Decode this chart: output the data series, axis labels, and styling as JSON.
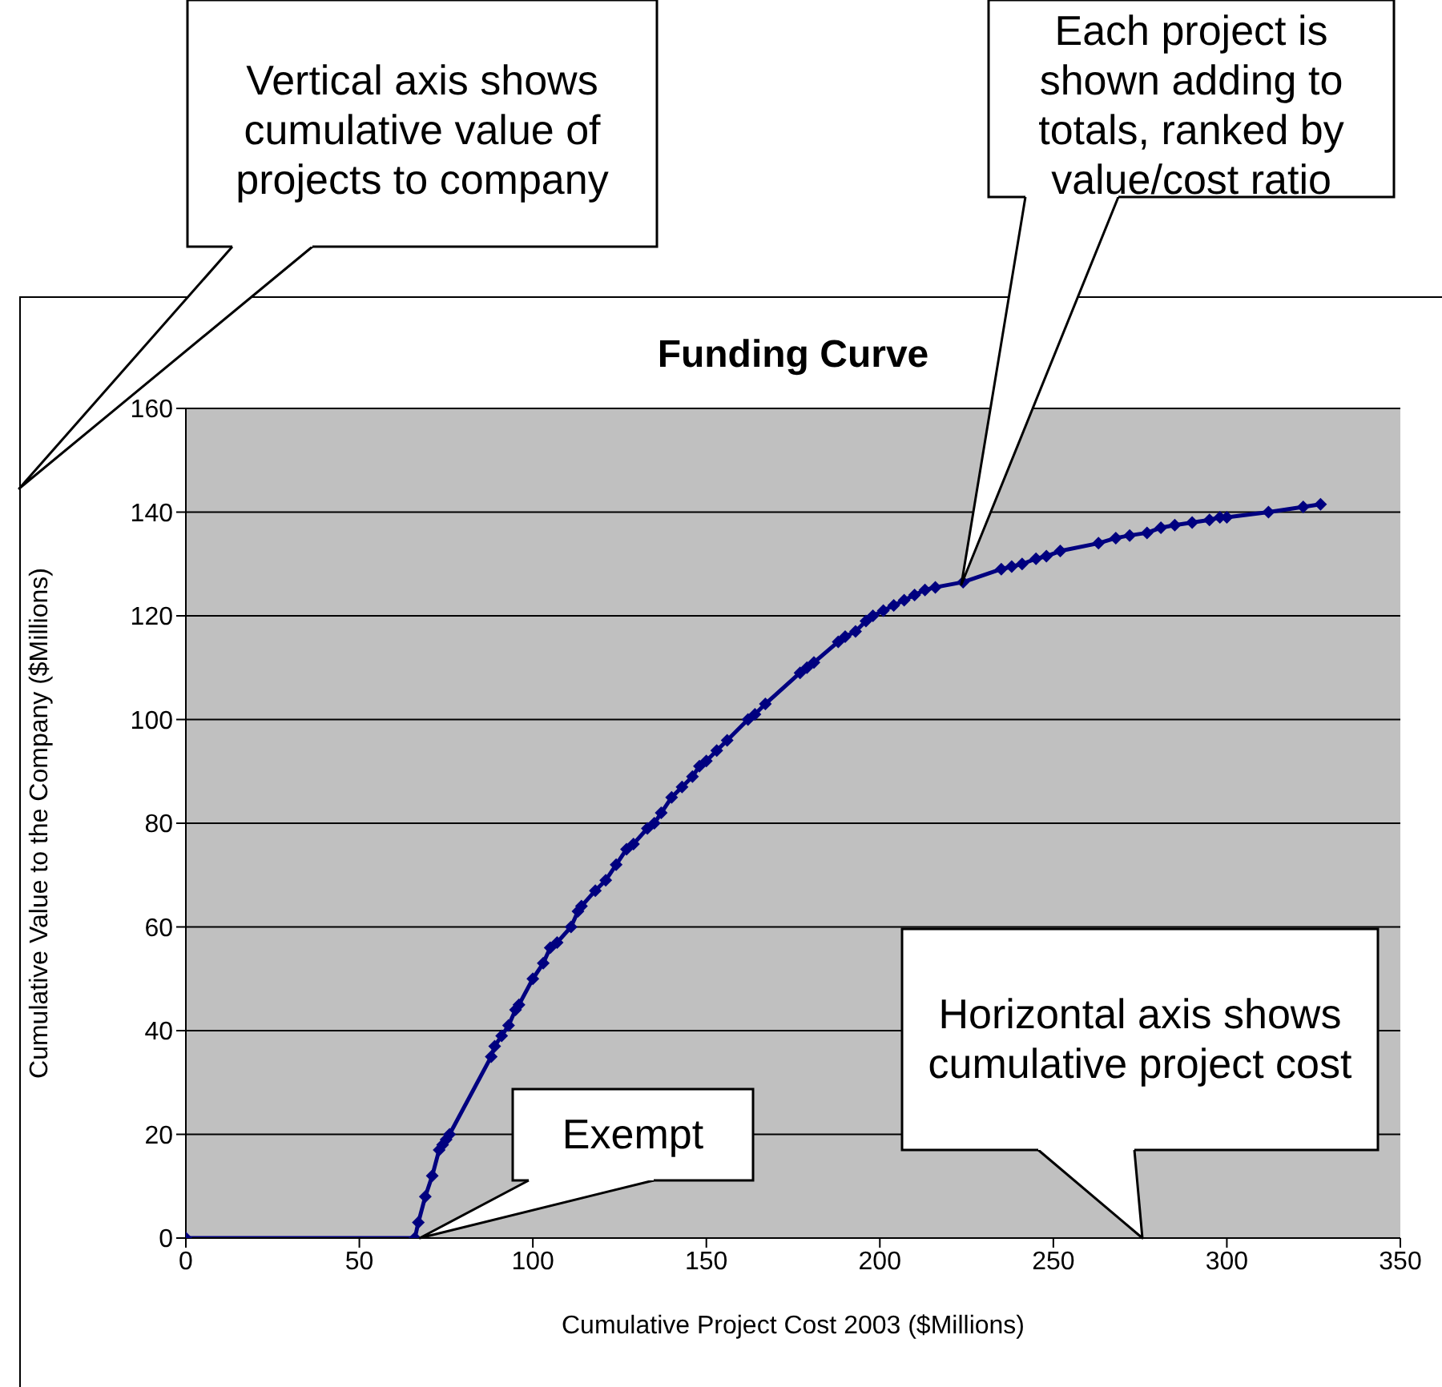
{
  "chart_data": {
    "type": "line",
    "title": "Funding Curve",
    "xlabel": "Cumulative Project Cost  2003 ($Millions)",
    "ylabel": "Cumulative Value to the Company ($Millions)",
    "x": [
      0,
      66,
      67,
      69,
      71,
      73,
      74,
      75,
      76,
      88,
      89,
      91,
      93,
      95,
      96,
      100,
      103,
      105,
      107,
      111,
      113,
      114,
      118,
      121,
      124,
      127,
      129,
      133,
      135,
      137,
      140,
      143,
      146,
      148,
      150,
      153,
      156,
      162,
      164,
      167,
      177,
      179,
      181,
      188,
      190,
      193,
      196,
      198,
      201,
      204,
      207,
      210,
      213,
      216,
      224,
      235,
      238,
      241,
      245,
      248,
      252,
      263,
      268,
      272,
      277,
      281,
      285,
      290,
      295,
      298,
      300,
      312,
      322,
      327
    ],
    "series": [
      {
        "color": "#000080",
        "values": [
          0,
          0,
          3,
          8,
          12,
          17,
          18,
          19,
          20,
          35,
          37,
          39,
          41,
          44,
          45,
          50,
          53,
          56,
          57,
          60,
          63,
          64,
          67,
          69,
          72,
          75,
          76,
          79,
          80,
          82,
          85,
          87,
          89,
          91,
          92,
          94,
          96,
          100,
          101,
          103,
          109,
          110,
          111,
          115,
          116,
          117,
          119,
          120,
          121,
          122,
          123,
          124,
          125,
          125.5,
          126.5,
          129,
          129.5,
          130,
          131,
          131.5,
          132.5,
          134,
          135,
          135.5,
          136,
          137,
          137.5,
          138,
          138.5,
          139,
          139,
          140,
          141,
          141.5
        ]
      }
    ],
    "xlim": [
      0,
      350
    ],
    "xticks": [
      0,
      50,
      100,
      150,
      200,
      250,
      300,
      350
    ],
    "ylim": [
      0,
      160
    ],
    "yticks": [
      0,
      20,
      40,
      60,
      80,
      100,
      120,
      140,
      160
    ],
    "grid": "y",
    "legend": false,
    "marker": "diamond",
    "line_style": "solid",
    "annotations": [
      "Vertical axis shows cumulative value of projects to company",
      "Each project is shown adding to totals, ranked by value/cost ratio",
      "Exempt",
      "Horizontal axis shows cumulative project cost"
    ]
  }
}
